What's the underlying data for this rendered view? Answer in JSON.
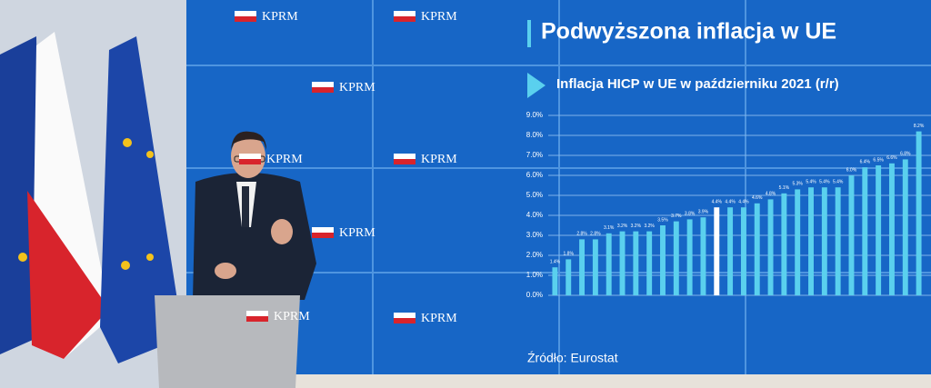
{
  "screen": {
    "heading": "Podwyższona inflacja w UE",
    "logos": [
      "KPRM",
      "KPRM",
      "KPRM",
      "KPRM",
      "KPRM",
      "KPRM",
      "KPRM",
      "KPRM"
    ],
    "source": "Źródło: Eurostat"
  },
  "chart_data": {
    "type": "bar",
    "title": "Inflacja HICP w UE w październiku 2021 (r/r)",
    "categories": [
      null,
      null,
      null,
      null,
      null,
      null,
      null,
      null,
      null,
      null,
      null,
      null,
      null,
      null,
      null,
      null,
      null,
      null,
      null,
      null,
      null,
      null,
      null,
      null,
      null,
      null,
      null,
      null
    ],
    "values": [
      1.4,
      1.8,
      2.8,
      2.8,
      3.1,
      3.2,
      3.2,
      3.2,
      3.5,
      3.7,
      3.8,
      3.9,
      4.4,
      4.4,
      4.4,
      4.6,
      4.8,
      5.1,
      5.3,
      5.4,
      5.4,
      5.4,
      6.0,
      6.4,
      6.5,
      6.6,
      6.8,
      8.2
    ],
    "value_labels": [
      "1.4%",
      "1.8%",
      "2.8%",
      "2.8%",
      "3.1%",
      "3.2%",
      "3.2%",
      "3.2%",
      "3.5%",
      "3.7%",
      "3.8%",
      "3.9%",
      "4.4%",
      "4.4%",
      "4.4%",
      "4.6%",
      "4.8%",
      "5.1%",
      "5.3%",
      "5.4%",
      "5.4%",
      "5.4%",
      "6.0%",
      "6.4%",
      "6.5%",
      "6.6%",
      "6.8%",
      "8.2%"
    ],
    "color": "#5ad0ee",
    "highlight_color": "#ffffff",
    "highlight_index": 12,
    "ylim": [
      0,
      9
    ],
    "yticks": [
      {
        "value": 0,
        "label": "0.0%"
      },
      {
        "value": 1,
        "label": "1.0%"
      },
      {
        "value": 2,
        "label": "2.0%"
      },
      {
        "value": 3,
        "label": "3.0%"
      },
      {
        "value": 4,
        "label": "4.0%"
      },
      {
        "value": 5,
        "label": "5.0%"
      },
      {
        "value": 6,
        "label": "6.0%"
      },
      {
        "value": 7,
        "label": "7.0%"
      },
      {
        "value": 8,
        "label": "8.0%"
      },
      {
        "value": 9,
        "label": "9.0%"
      }
    ],
    "grid": true
  }
}
